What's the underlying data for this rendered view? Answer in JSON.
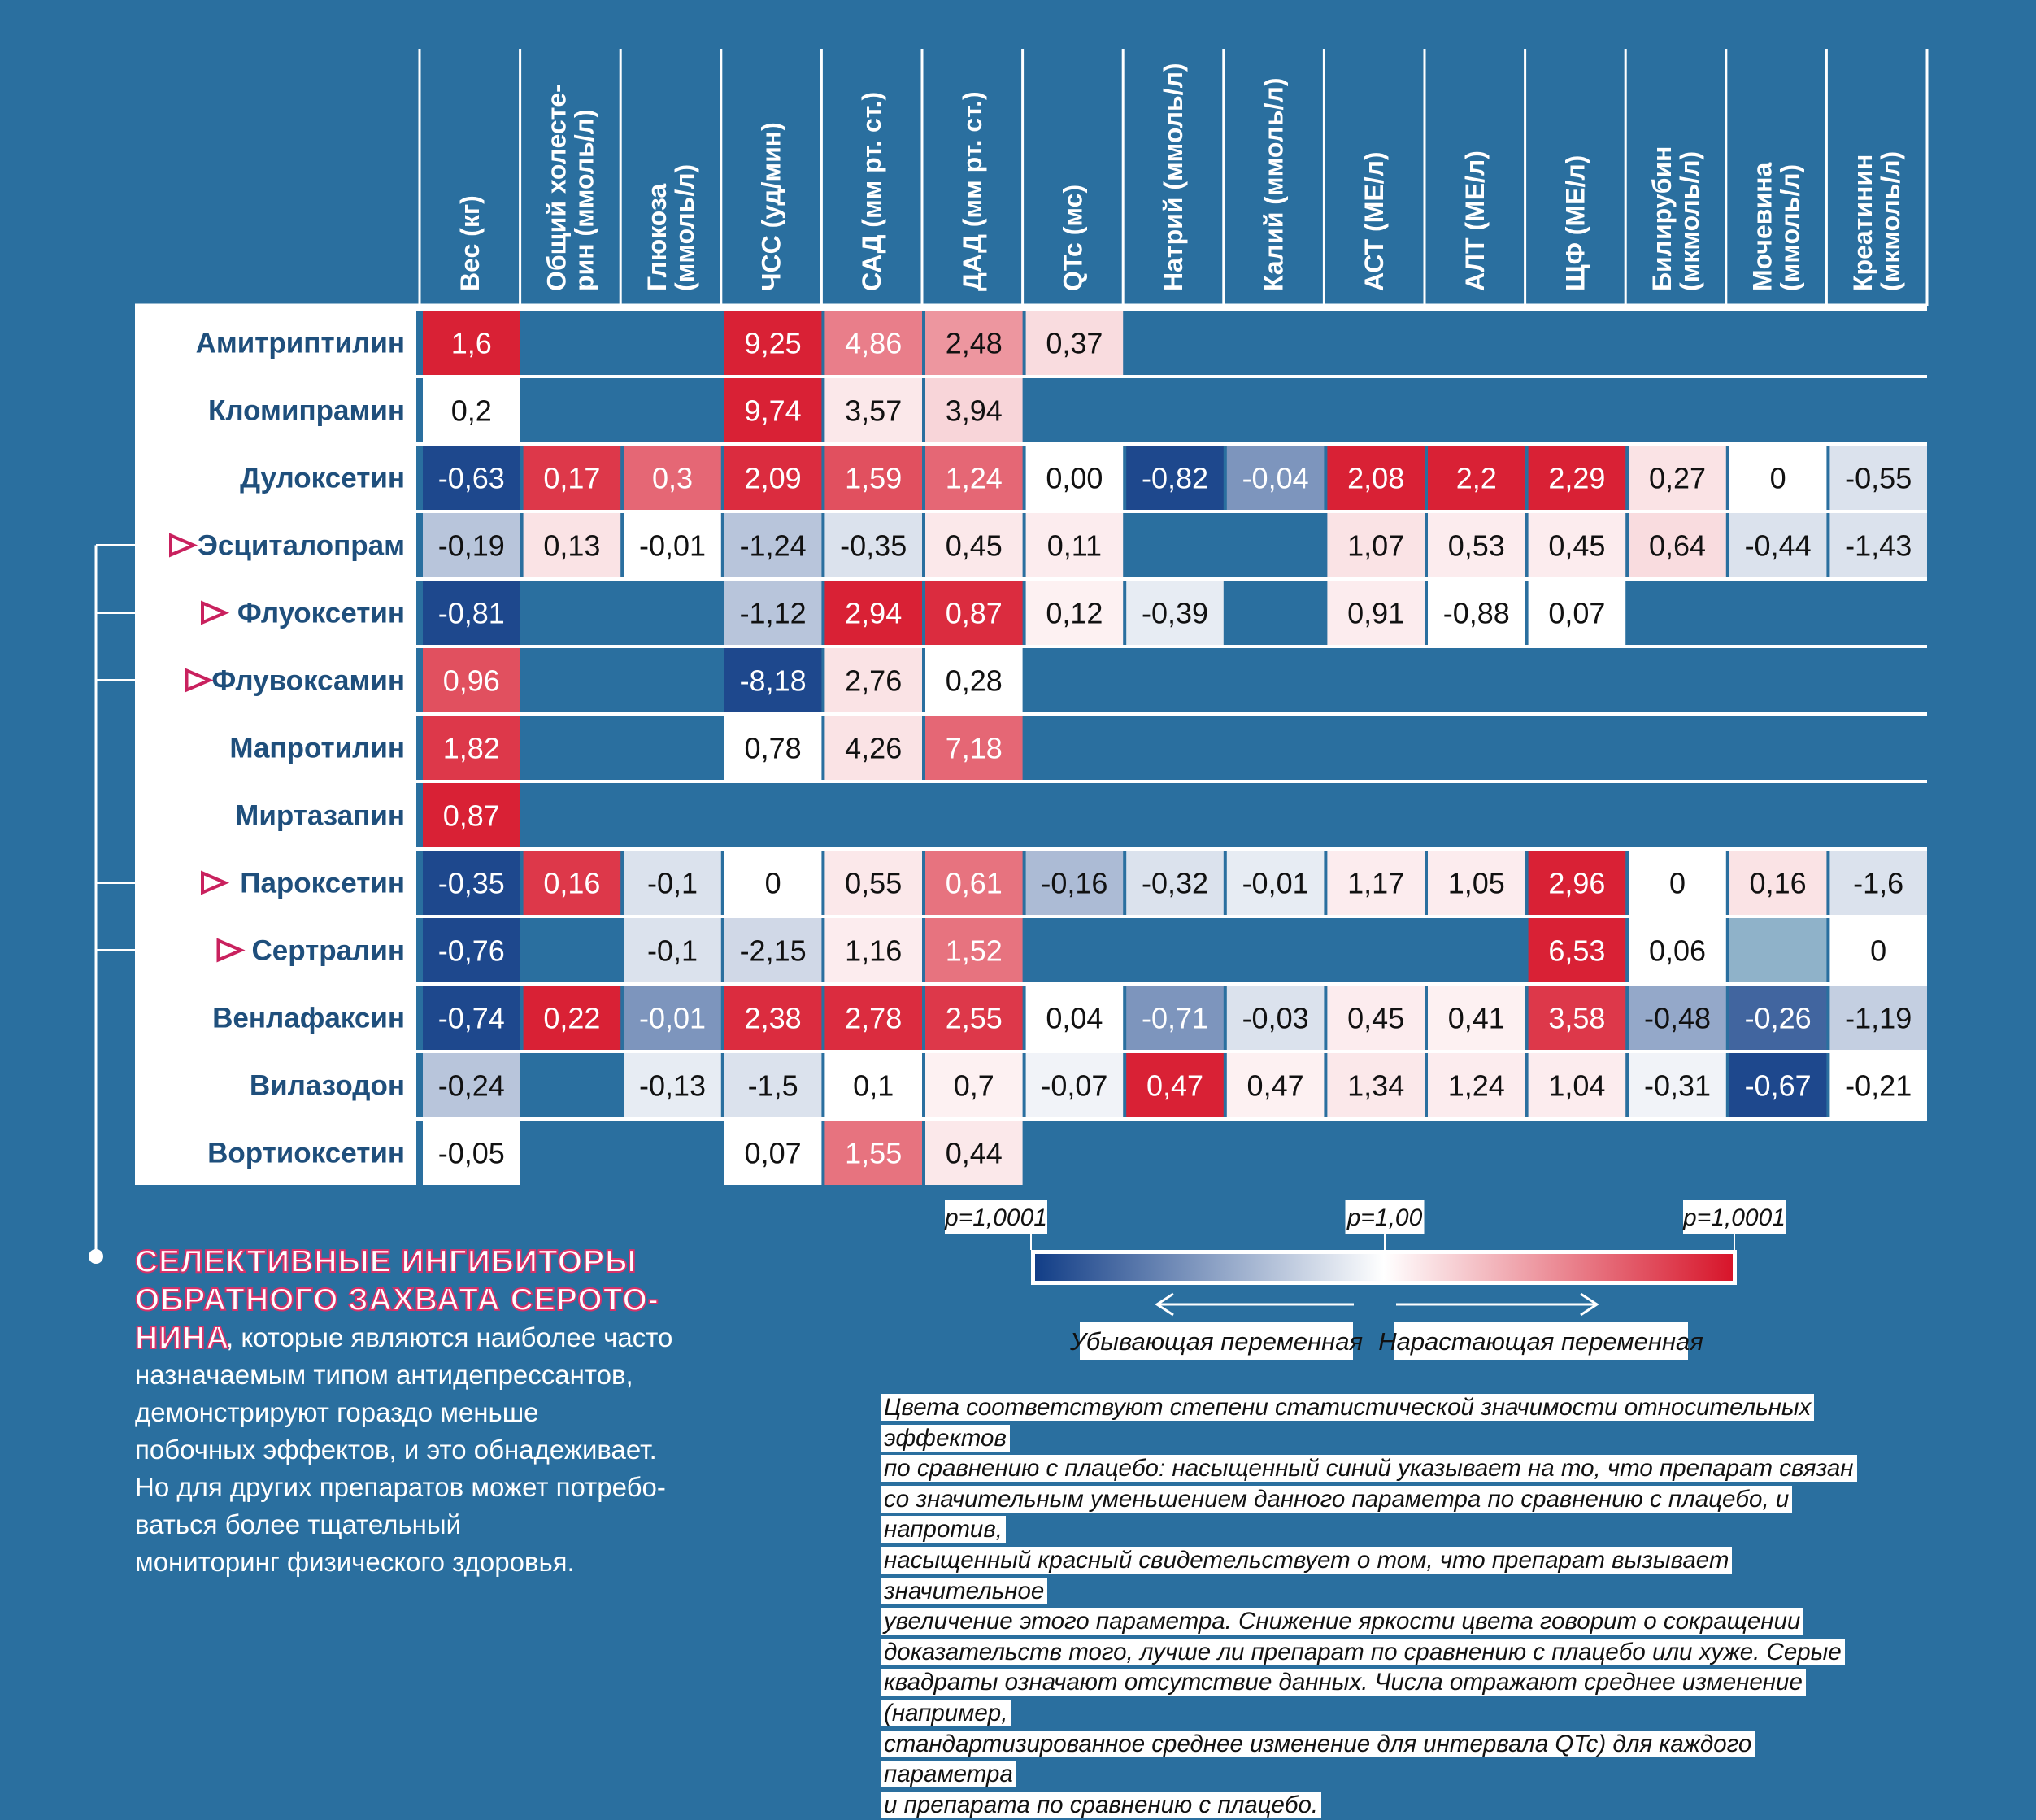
{
  "chart_data": {
    "type": "heatmap",
    "columns": [
      "Вес (кг)",
      "Общий холесте-\nрин (ммоль/л)",
      "Глюкоза\n(ммоль/л)",
      "ЧСС (уд/мин)",
      "САД (мм рт. ст.)",
      "ДАД (мм рт. ст.)",
      "QTc (мс)",
      "Натрий (ммоль/л)",
      "Калий (ммоль/л)",
      "АСТ (МЕ/л)",
      "АЛТ (МЕ/л)",
      "ЩФ (МЕ/л)",
      "Билирубин\n(мкмоль/л)",
      "Мочевина\n(ммоль/л)",
      "Креатинин\n(мкмоль/л)"
    ],
    "rows": [
      {
        "name": "Амитриптилин",
        "ssri": false,
        "cells": [
          {
            "v": "1,6",
            "c": 0.95
          },
          null,
          null,
          {
            "v": "9,25",
            "c": 0.95
          },
          {
            "v": "4,86",
            "c": 0.55
          },
          {
            "v": "2,48",
            "c": 0.45
          },
          {
            "v": "0,37",
            "c": 0.15
          },
          null,
          null,
          null,
          null,
          null,
          null,
          null,
          null
        ]
      },
      {
        "name": "Кломипрамин",
        "ssri": false,
        "cells": [
          {
            "v": "0,2",
            "c": 0
          },
          null,
          null,
          {
            "v": "9,74",
            "c": 0.95
          },
          {
            "v": "3,57",
            "c": 0.1
          },
          {
            "v": "3,94",
            "c": 0.18
          },
          null,
          null,
          null,
          null,
          null,
          null,
          null,
          null,
          null
        ]
      },
      {
        "name": "Дулоксетин",
        "ssri": false,
        "cells": [
          {
            "v": "-0,63",
            "c": -0.95
          },
          {
            "v": "0,17",
            "c": 0.85
          },
          {
            "v": "0,3",
            "c": 0.65
          },
          {
            "v": "2,09",
            "c": 0.9
          },
          {
            "v": "1,59",
            "c": 0.75
          },
          {
            "v": "1,24",
            "c": 0.65
          },
          {
            "v": "0,00",
            "c": 0
          },
          {
            "v": "-0,82",
            "c": -0.95
          },
          {
            "v": "-0,04",
            "c": -0.55
          },
          {
            "v": "2,08",
            "c": 0.95
          },
          {
            "v": "2,2",
            "c": 0.95
          },
          {
            "v": "2,29",
            "c": 0.95
          },
          {
            "v": "0,27",
            "c": 0.12
          },
          {
            "v": "0",
            "c": 0
          },
          {
            "v": "-0,55",
            "c": -0.15
          }
        ]
      },
      {
        "name": "Эсциталопрам",
        "ssri": true,
        "cells": [
          {
            "v": "-0,19",
            "c": -0.3
          },
          {
            "v": "0,13",
            "c": 0.12
          },
          {
            "v": "-0,01",
            "c": 0
          },
          {
            "v": "-1,24",
            "c": -0.3
          },
          {
            "v": "-0,35",
            "c": -0.15
          },
          {
            "v": "0,45",
            "c": 0.1
          },
          {
            "v": "0,11",
            "c": 0.08
          },
          null,
          null,
          {
            "v": "1,07",
            "c": 0.12
          },
          {
            "v": "0,53",
            "c": 0.08
          },
          {
            "v": "0,45",
            "c": 0.08
          },
          {
            "v": "0,64",
            "c": 0.15
          },
          {
            "v": "-0,44",
            "c": -0.15
          },
          {
            "v": "-1,43",
            "c": -0.15
          }
        ]
      },
      {
        "name": "Флуоксетин",
        "ssri": true,
        "cells": [
          {
            "v": "-0,81",
            "c": -0.95
          },
          null,
          null,
          {
            "v": "-1,12",
            "c": -0.3
          },
          {
            "v": "2,94",
            "c": 0.95
          },
          {
            "v": "0,87",
            "c": 0.9
          },
          {
            "v": "0,12",
            "c": 0.06
          },
          {
            "v": "-0,39",
            "c": -0.1
          },
          null,
          {
            "v": "0,91",
            "c": 0.08
          },
          {
            "v": "-0,88",
            "c": 0
          },
          {
            "v": "0,07",
            "c": 0
          },
          null,
          null,
          null
        ]
      },
      {
        "name": "Флувоксамин",
        "ssri": true,
        "cells": [
          {
            "v": "0,96",
            "c": 0.75
          },
          null,
          null,
          {
            "v": "-8,18",
            "c": -0.95
          },
          {
            "v": "2,76",
            "c": 0.12
          },
          {
            "v": "0,28",
            "c": 0
          },
          null,
          null,
          null,
          null,
          null,
          null,
          null,
          null,
          null
        ]
      },
      {
        "name": "Мапротилин",
        "ssri": false,
        "cells": [
          {
            "v": "1,82",
            "c": 0.85
          },
          null,
          null,
          {
            "v": "0,78",
            "c": 0
          },
          {
            "v": "4,26",
            "c": 0.12
          },
          {
            "v": "7,18",
            "c": 0.65
          },
          null,
          null,
          null,
          null,
          null,
          null,
          null,
          null,
          null
        ]
      },
      {
        "name": "Миртазапин",
        "ssri": false,
        "cells": [
          {
            "v": "0,87",
            "c": 0.95
          },
          null,
          null,
          null,
          null,
          null,
          null,
          null,
          null,
          null,
          null,
          null,
          null,
          null,
          null
        ]
      },
      {
        "name": "Пароксетин",
        "ssri": true,
        "cells": [
          {
            "v": "-0,35",
            "c": -0.95
          },
          {
            "v": "0,16",
            "c": 0.85
          },
          {
            "v": "-0,1",
            "c": -0.15
          },
          {
            "v": "0",
            "c": 0
          },
          {
            "v": "0,55",
            "c": 0.1
          },
          {
            "v": "0,61",
            "c": 0.6
          },
          {
            "v": "-0,16",
            "c": -0.35
          },
          {
            "v": "-0,32",
            "c": -0.15
          },
          {
            "v": "-0,01",
            "c": -0.1
          },
          {
            "v": "1,17",
            "c": 0.08
          },
          {
            "v": "1,05",
            "c": 0.08
          },
          {
            "v": "2,96",
            "c": 0.95
          },
          {
            "v": "0",
            "c": 0
          },
          {
            "v": "0,16",
            "c": 0.12
          },
          {
            "v": "-1,6",
            "c": -0.15
          }
        ]
      },
      {
        "name": "Сертралин",
        "ssri": true,
        "cells": [
          {
            "v": "-0,76",
            "c": -0.95
          },
          null,
          {
            "v": "-0,1",
            "c": -0.15
          },
          {
            "v": "-2,15",
            "c": -0.2
          },
          {
            "v": "1,16",
            "c": 0.08
          },
          {
            "v": "1,52",
            "c": 0.6
          },
          null,
          null,
          null,
          null,
          null,
          {
            "v": "6,53",
            "c": 0.95
          },
          {
            "v": "0,06",
            "c": 0
          },
          {
            "gray": true
          },
          {
            "v": "0",
            "c": 0
          }
        ]
      },
      {
        "name": "Венлафаксин",
        "ssri": false,
        "cells": [
          {
            "v": "-0,74",
            "c": -0.95
          },
          {
            "v": "0,22",
            "c": 0.95
          },
          {
            "v": "-0,01",
            "c": -0.55
          },
          {
            "v": "2,38",
            "c": 0.9
          },
          {
            "v": "2,78",
            "c": 0.9
          },
          {
            "v": "2,55",
            "c": 0.85
          },
          {
            "v": "0,04",
            "c": 0
          },
          {
            "v": "-0,71",
            "c": -0.55
          },
          {
            "v": "-0,03",
            "c": -0.15
          },
          {
            "v": "0,45",
            "c": 0.08
          },
          {
            "v": "0,41",
            "c": 0.06
          },
          {
            "v": "3,58",
            "c": 0.85
          },
          {
            "v": "-0,48",
            "c": -0.45
          },
          {
            "v": "-0,26",
            "c": -0.8
          },
          {
            "v": "-1,19",
            "c": -0.25
          }
        ]
      },
      {
        "name": "Вилазодон",
        "ssri": false,
        "cells": [
          {
            "v": "-0,24",
            "c": -0.3
          },
          null,
          {
            "v": "-0,13",
            "c": -0.1
          },
          {
            "v": "-1,5",
            "c": -0.15
          },
          {
            "v": "0,1",
            "c": 0
          },
          {
            "v": "0,7",
            "c": 0.06
          },
          {
            "v": "-0,07",
            "c": -0.06
          },
          {
            "v": "0,47",
            "c": 0.95
          },
          {
            "v": "0,47",
            "c": 0.06
          },
          {
            "v": "1,34",
            "c": 0.1
          },
          {
            "v": "1,24",
            "c": 0.08
          },
          {
            "v": "1,04",
            "c": 0.08
          },
          {
            "v": "-0,31",
            "c": -0.06
          },
          {
            "v": "-0,67",
            "c": -0.95
          },
          {
            "v": "-0,21",
            "c": 0
          }
        ]
      },
      {
        "name": "Вортиоксетин",
        "ssri": false,
        "cells": [
          {
            "v": "-0,05",
            "c": 0
          },
          null,
          null,
          {
            "v": "0,07",
            "c": 0
          },
          {
            "v": "1,55",
            "c": 0.6
          },
          {
            "v": "0,44",
            "c": 0.1
          },
          null,
          null,
          null,
          null,
          null,
          null,
          null,
          null,
          null
        ]
      }
    ],
    "color_scale": {
      "left_label": "p=1,0001",
      "center_label": "p=1,00",
      "right_label": "p=1,0001",
      "colors": {
        "neg": "#123e87",
        "zero": "#ffffff",
        "pos": "#d7152a",
        "missing": "#2a6f9f",
        "gray": "#8fb2c9"
      }
    },
    "direction_labels": {
      "decrease": "Убывающая переменная",
      "increase": "Нарастающая переменная"
    }
  },
  "ssri_note": {
    "title": "Селективные ингибиторы\nобратного захвата серото-\nнина",
    "body": ", которые являются наиболее часто\nназначаемым типом антидепрессантов,\nдемонстрируют гораздо меньше\nпобочных эффектов, и это обнадеживает.\nНо для других препаратов может потребо-\nваться более тщательный\nмониторинг физического здоровья."
  },
  "legend_note": "Цвета соответствуют степени статистической значимости относительных эффектов\nпо сравнению с плацебо: насыщенный синий указывает на то, что препарат связан\nсо значительным уменьшением данного параметра по сравнению с плацебо, и напротив,\nнасыщенный красный свидетельствует о том, что препарат вызывает значительное\nувеличение этого параметра. Снижение яркости цвета говорит о сокращении\nдоказательств того, лучше ли препарат по сравнению с плацебо или хуже. Серые\nквадраты означают отсутствие данных. Числа отражают среднее изменение (например,\nстандартизированное среднее изменение для интервала QTc) для каждого параметра\nи препарата по сравнению с плацебо."
}
